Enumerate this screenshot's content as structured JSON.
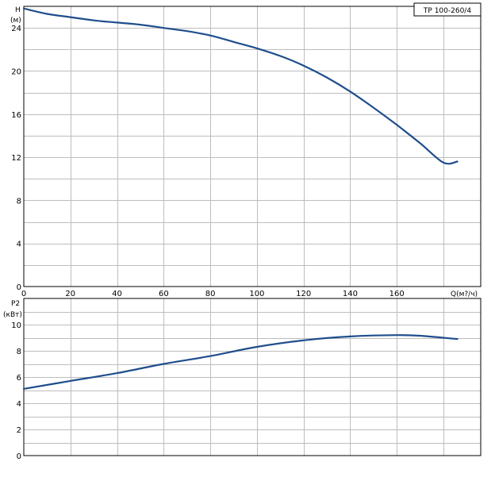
{
  "chart_data": [
    {
      "type": "line",
      "title": "TP 100-260/4",
      "ylabel": "H",
      "yunit": "(м)",
      "xlabel": "Q(м?/ч)",
      "xlim": [
        0,
        196
      ],
      "ylim": [
        0,
        26
      ],
      "xticks": [
        0,
        20,
        40,
        60,
        80,
        100,
        120,
        140,
        160
      ],
      "yticks": [
        0,
        4,
        8,
        12,
        16,
        20,
        24
      ],
      "grid": true,
      "series": [
        {
          "x": [
            0,
            10,
            20,
            30,
            40,
            50,
            60,
            70,
            80,
            90,
            100,
            110,
            120,
            130,
            140,
            150,
            160,
            170,
            180,
            186
          ],
          "y": [
            25.8,
            25.3,
            25.0,
            24.7,
            24.5,
            24.3,
            24.0,
            23.7,
            23.3,
            22.7,
            22.1,
            21.4,
            20.5,
            19.4,
            18.1,
            16.6,
            15.0,
            13.3,
            11.5,
            11.6
          ]
        }
      ]
    },
    {
      "type": "line",
      "ylabel": "P2",
      "yunit": "(кВт)",
      "xlim": [
        0,
        196
      ],
      "ylim": [
        0,
        12
      ],
      "yticks": [
        0,
        2,
        4,
        6,
        8,
        10
      ],
      "grid": true,
      "series": [
        {
          "x": [
            0,
            20,
            40,
            60,
            80,
            100,
            120,
            140,
            160,
            170,
            186
          ],
          "y": [
            5.1,
            5.7,
            6.3,
            7.0,
            7.6,
            8.3,
            8.8,
            9.1,
            9.2,
            9.15,
            8.9
          ]
        }
      ]
    }
  ]
}
